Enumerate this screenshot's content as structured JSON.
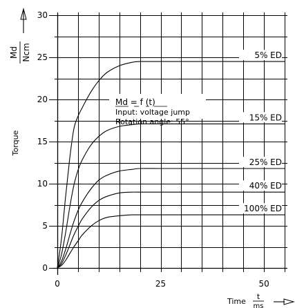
{
  "chart_data": {
    "type": "line",
    "title": "",
    "xlabel": "Time",
    "xunit_num": "t",
    "xunit_den": "ms",
    "ylabel": "Torque",
    "yunit_num": "Md",
    "yunit_den": "Ncm",
    "xlim": [
      0,
      55
    ],
    "ylim": [
      0,
      30
    ],
    "x_ticks": [
      0,
      25,
      50
    ],
    "y_ticks": [
      0,
      5,
      10,
      15,
      20,
      25,
      30
    ],
    "grid": true,
    "annotation": {
      "formula": "Md = f (t)",
      "line1": "Input: voltage jump",
      "line2": "Rotation angle: 55°"
    },
    "series": [
      {
        "name": "5% ED",
        "x": [
          0,
          1,
          2,
          3,
          4,
          5,
          6,
          8,
          10,
          12,
          15,
          18,
          20,
          25,
          30,
          40,
          50,
          55
        ],
        "y": [
          0,
          3.5,
          8.5,
          13,
          16.5,
          18,
          19,
          20.8,
          22.2,
          23.2,
          24,
          24.4,
          24.5,
          24.5,
          24.5,
          24.5,
          24.5,
          24.5
        ]
      },
      {
        "name": "15% ED",
        "x": [
          0,
          1,
          2,
          3,
          4,
          5,
          6,
          8,
          10,
          12,
          15,
          18,
          20,
          25,
          30,
          40,
          50,
          55
        ],
        "y": [
          0,
          1.6,
          4.2,
          7.2,
          9.8,
          11.6,
          12.8,
          14.5,
          15.6,
          16.3,
          16.8,
          17.0,
          17.1,
          17.1,
          17.1,
          17.1,
          17.1,
          17.1
        ]
      },
      {
        "name": "25% ED",
        "x": [
          0,
          1,
          2,
          3,
          4,
          5,
          6,
          8,
          10,
          12,
          15,
          18,
          20,
          25,
          30,
          40,
          50,
          55
        ],
        "y": [
          0,
          0.8,
          2.2,
          3.9,
          5.5,
          6.8,
          7.8,
          9.3,
          10.4,
          11.0,
          11.5,
          11.7,
          11.8,
          11.8,
          11.8,
          11.8,
          11.8,
          11.8
        ]
      },
      {
        "name": "40% ED",
        "x": [
          0,
          1,
          2,
          3,
          4,
          5,
          6,
          8,
          10,
          12,
          15,
          18,
          20,
          25,
          30,
          40,
          50,
          55
        ],
        "y": [
          0,
          0.5,
          1.5,
          2.7,
          3.9,
          4.9,
          5.8,
          7.1,
          8.0,
          8.5,
          8.9,
          9.0,
          9.0,
          9.0,
          9.0,
          9.0,
          9.0,
          9.0
        ]
      },
      {
        "name": "100% ED",
        "x": [
          0,
          1,
          2,
          3,
          4,
          5,
          6,
          8,
          10,
          12,
          15,
          18,
          20,
          25,
          30,
          40,
          50,
          55
        ],
        "y": [
          0,
          0.3,
          0.9,
          1.7,
          2.5,
          3.2,
          3.9,
          4.9,
          5.6,
          6.0,
          6.2,
          6.3,
          6.3,
          6.3,
          6.3,
          6.3,
          6.3,
          6.3
        ]
      }
    ]
  }
}
